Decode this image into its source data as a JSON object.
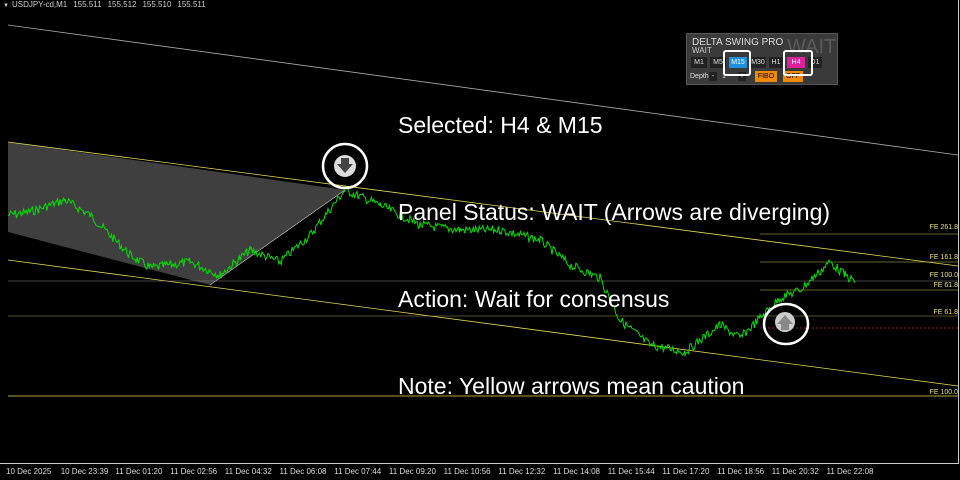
{
  "header": {
    "symbol": "USDJPY-cd,M1",
    "prices": [
      "155.511",
      "155.512",
      "155.510",
      "155.511"
    ]
  },
  "panel": {
    "title": "DELTA SWING PRO",
    "status": "WAIT",
    "status_big": "WAIT",
    "timeframes": [
      {
        "label": "M1"
      },
      {
        "label": "M5"
      },
      {
        "label": "M15",
        "active": true,
        "color": "#1e90e0"
      },
      {
        "label": "M30"
      },
      {
        "label": "H1"
      },
      {
        "label": "H4",
        "active": true,
        "color": "#e0209a"
      },
      {
        "label": "D1"
      }
    ],
    "depth_label": "Depth:",
    "depth_minus": "-",
    "depth_value": "1",
    "depth_plus": "+",
    "fibo_label": "FIBO",
    "off_label": "OFF"
  },
  "notes": [
    "Selected: H4 & M15",
    "Panel Status: WAIT (Arrows are diverging)",
    "Action: Wait for consensus",
    "Note: Yellow arrows mean caution"
  ],
  "fib_labels": [
    "FE 261.8",
    "FE 161.8",
    "FE 100.0",
    "FE 61.8",
    "FE 61.8",
    "FE 100.0"
  ],
  "x_ticks": [
    "10 Dec 2025",
    "10 Dec 23:39",
    "11 Dec 01:20",
    "11 Dec 02:56",
    "11 Dec 04:32",
    "11 Dec 06:08",
    "11 Dec 07:44",
    "11 Dec 09:20",
    "11 Dec 10:56",
    "11 Dec 12:32",
    "11 Dec 14:08",
    "11 Dec 15:44",
    "11 Dec 17:20",
    "11 Dec 18:56",
    "11 Dec 20:32",
    "11 Dec 22:08"
  ],
  "arrows": [
    {
      "icon": "arrow-down-icon",
      "signal": "sell"
    },
    {
      "icon": "arrow-up-icon",
      "signal": "buy"
    }
  ],
  "colors": {
    "price": "#00e000",
    "channel": "#e8d84a",
    "fib": "#d8d060",
    "panel_bg": "#3a3a3a",
    "m15": "#1e90e0",
    "h4": "#e0209a",
    "fibo_btn": "#f08a00"
  }
}
